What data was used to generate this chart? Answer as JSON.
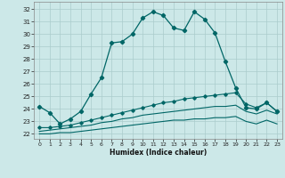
{
  "title": "",
  "xlabel": "Humidex (Indice chaleur)",
  "bg_color": "#cce8e8",
  "grid_color": "#aacccc",
  "line_color": "#006666",
  "xlim": [
    -0.5,
    23.5
  ],
  "ylim": [
    21.6,
    32.6
  ],
  "yticks": [
    22,
    23,
    24,
    25,
    26,
    27,
    28,
    29,
    30,
    31,
    32
  ],
  "xticks": [
    0,
    1,
    2,
    3,
    4,
    5,
    6,
    7,
    8,
    9,
    10,
    11,
    12,
    13,
    14,
    15,
    16,
    17,
    18,
    19,
    20,
    21,
    22,
    23
  ],
  "line1_x": [
    0,
    1,
    2,
    3,
    4,
    5,
    6,
    7,
    8,
    9,
    10,
    11,
    12,
    13,
    14,
    15,
    16,
    17,
    18,
    19,
    20,
    21,
    22,
    23
  ],
  "line1_y": [
    24.2,
    23.7,
    22.8,
    23.2,
    23.8,
    25.2,
    26.5,
    29.3,
    29.4,
    30.0,
    31.3,
    31.8,
    31.5,
    30.5,
    30.3,
    31.8,
    31.2,
    30.1,
    27.8,
    25.7,
    24.1,
    24.0,
    24.5,
    23.8
  ],
  "line2_x": [
    0,
    1,
    2,
    3,
    4,
    5,
    6,
    7,
    8,
    9,
    10,
    11,
    12,
    13,
    14,
    15,
    16,
    17,
    18,
    19,
    20,
    21,
    22,
    23
  ],
  "line2_y": [
    22.5,
    22.5,
    22.6,
    22.7,
    22.9,
    23.1,
    23.3,
    23.5,
    23.7,
    23.9,
    24.1,
    24.3,
    24.5,
    24.6,
    24.8,
    24.9,
    25.0,
    25.1,
    25.2,
    25.3,
    24.4,
    24.1,
    24.5,
    23.8
  ],
  "line3_x": [
    0,
    1,
    2,
    3,
    4,
    5,
    6,
    7,
    8,
    9,
    10,
    11,
    12,
    13,
    14,
    15,
    16,
    17,
    18,
    19,
    20,
    21,
    22,
    23
  ],
  "line3_y": [
    22.2,
    22.3,
    22.4,
    22.5,
    22.6,
    22.7,
    22.9,
    23.0,
    23.2,
    23.3,
    23.5,
    23.6,
    23.7,
    23.8,
    23.9,
    24.0,
    24.1,
    24.2,
    24.2,
    24.3,
    23.8,
    23.6,
    23.9,
    23.6
  ],
  "line4_x": [
    0,
    1,
    2,
    3,
    4,
    5,
    6,
    7,
    8,
    9,
    10,
    11,
    12,
    13,
    14,
    15,
    16,
    17,
    18,
    19,
    20,
    21,
    22,
    23
  ],
  "line4_y": [
    22.0,
    22.0,
    22.1,
    22.1,
    22.2,
    22.3,
    22.4,
    22.5,
    22.6,
    22.7,
    22.8,
    22.9,
    23.0,
    23.1,
    23.1,
    23.2,
    23.2,
    23.3,
    23.3,
    23.4,
    23.0,
    22.8,
    23.1,
    22.8
  ]
}
